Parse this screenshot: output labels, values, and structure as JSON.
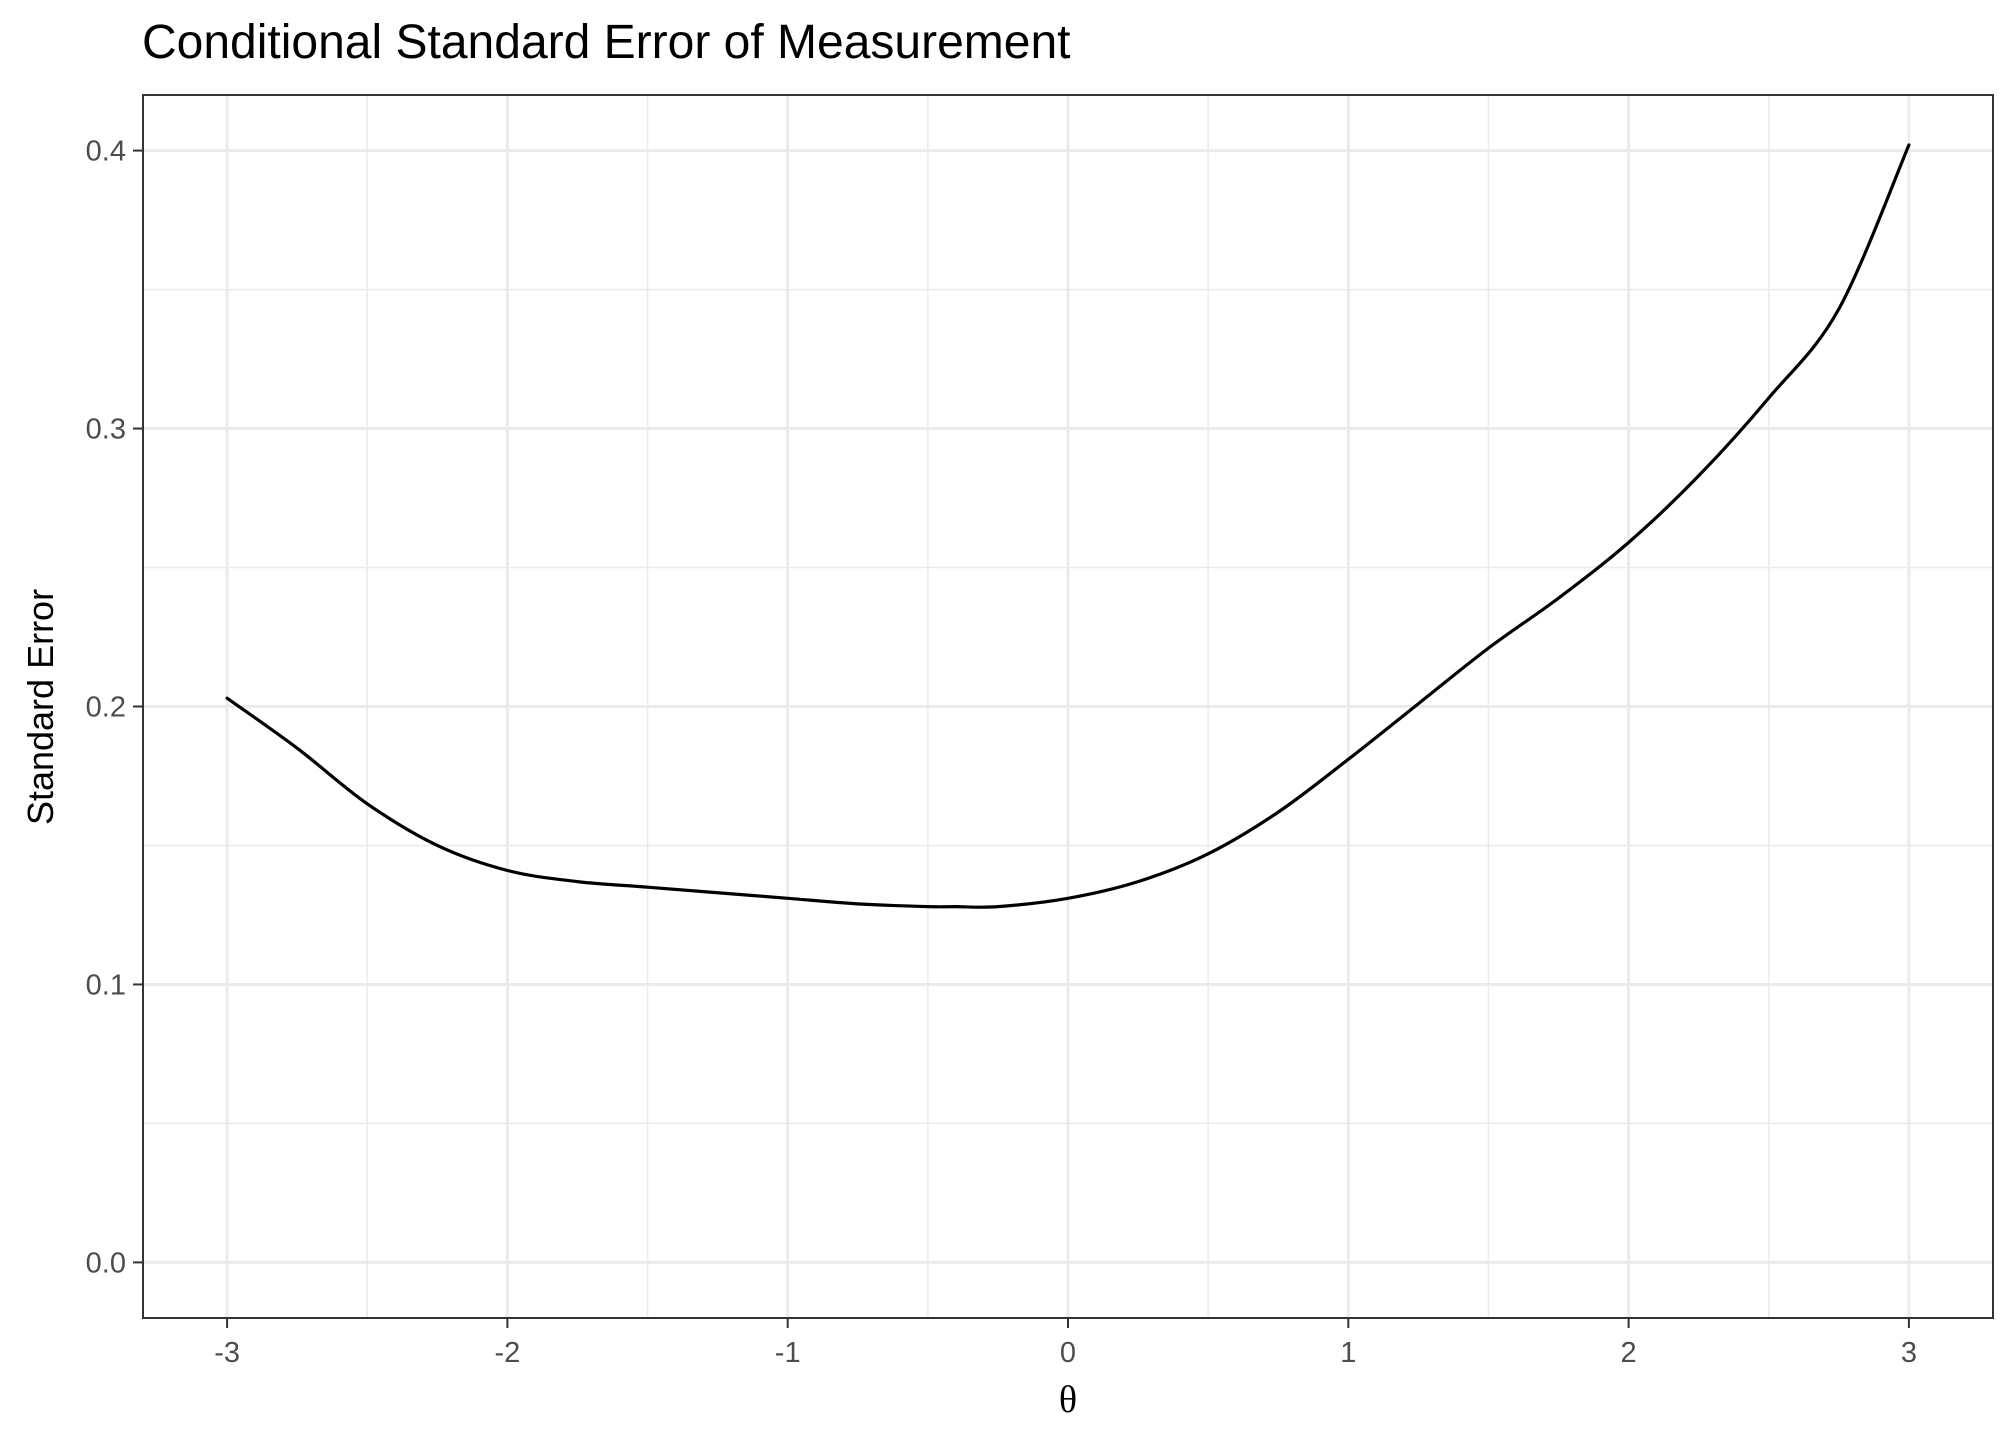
{
  "chart_data": {
    "type": "line",
    "title": "Conditional Standard Error of Measurement",
    "xlabel": "θ",
    "ylabel": "Standard Error",
    "xlim": [
      -3.3,
      3.3
    ],
    "ylim": [
      -0.02,
      0.42
    ],
    "x_ticks": [
      -3,
      -2,
      -1,
      0,
      1,
      2,
      3
    ],
    "x_tick_labels": [
      "-3",
      "-2",
      "-1",
      "0",
      "1",
      "2",
      "3"
    ],
    "y_ticks": [
      0.0,
      0.1,
      0.2,
      0.3,
      0.4
    ],
    "y_tick_labels": [
      "0.0",
      "0.1",
      "0.2",
      "0.3",
      "0.4"
    ],
    "grid": true,
    "legend": "none",
    "series": [
      {
        "color": "#000000",
        "x": [
          -3.0,
          -2.75,
          -2.5,
          -2.25,
          -2.0,
          -1.75,
          -1.5,
          -1.25,
          -1.0,
          -0.75,
          -0.5,
          -0.4,
          -0.25,
          0.0,
          0.25,
          0.5,
          0.75,
          1.0,
          1.25,
          1.5,
          1.75,
          2.0,
          2.25,
          2.5,
          2.75,
          3.0
        ],
        "y": [
          0.203,
          0.185,
          0.165,
          0.15,
          0.141,
          0.137,
          0.135,
          0.133,
          0.131,
          0.129,
          0.128,
          0.128,
          0.128,
          0.131,
          0.137,
          0.147,
          0.162,
          0.181,
          0.201,
          0.221,
          0.239,
          0.259,
          0.283,
          0.311,
          0.343,
          0.402
        ]
      }
    ]
  }
}
